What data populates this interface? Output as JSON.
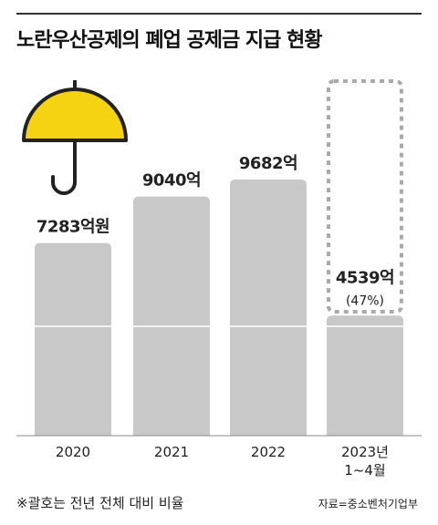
{
  "chart_data": {
    "type": "bar",
    "title": "노란우산공제의 폐업 공제금 지급 현황",
    "categories": [
      "2020",
      "2021",
      "2022",
      "2023년\n1~4월"
    ],
    "values": [
      7283,
      9040,
      9682,
      4539
    ],
    "value_labels": [
      "7283억원",
      "9040억",
      "9682억",
      "4539억"
    ],
    "annotation": "(47%)",
    "color": "#c8c8c8",
    "footnote": "※괄호는 전년 전체 대비 비율",
    "source": "자료=중소벤처기업부"
  }
}
